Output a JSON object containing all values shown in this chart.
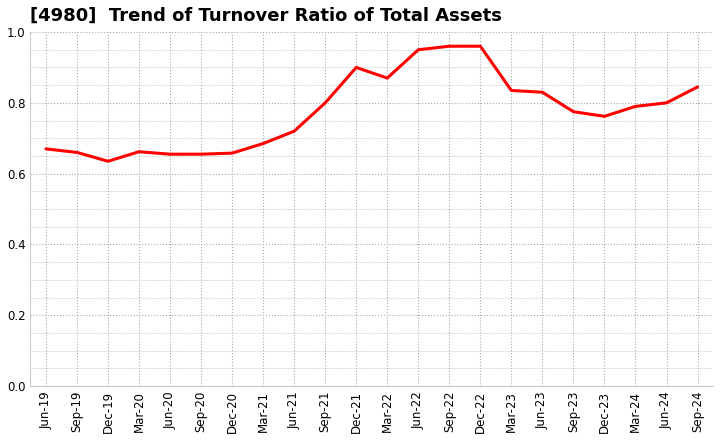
{
  "title": "[4980]  Trend of Turnover Ratio of Total Assets",
  "line_color": "#FF0000",
  "line_width": 2.2,
  "background_color": "#FFFFFF",
  "plot_bg_color": "#FFFFFF",
  "ylim": [
    0.0,
    1.0
  ],
  "yticks": [
    0.0,
    0.2,
    0.4,
    0.6,
    0.8,
    1.0
  ],
  "labels": [
    "Jun-19",
    "Sep-19",
    "Dec-19",
    "Mar-20",
    "Jun-20",
    "Sep-20",
    "Dec-20",
    "Mar-21",
    "Jun-21",
    "Sep-21",
    "Dec-21",
    "Mar-22",
    "Jun-22",
    "Sep-22",
    "Dec-22",
    "Mar-23",
    "Jun-23",
    "Sep-23",
    "Dec-23",
    "Mar-24",
    "Jun-24",
    "Sep-24"
  ],
  "values": [
    0.67,
    0.66,
    0.635,
    0.662,
    0.655,
    0.655,
    0.658,
    0.685,
    0.72,
    0.8,
    0.9,
    0.87,
    0.95,
    0.96,
    0.96,
    0.835,
    0.83,
    0.775,
    0.762,
    0.79,
    0.8,
    0.845
  ],
  "grid_color": "#AAAAAA",
  "title_fontsize": 13,
  "tick_fontsize": 8.5
}
